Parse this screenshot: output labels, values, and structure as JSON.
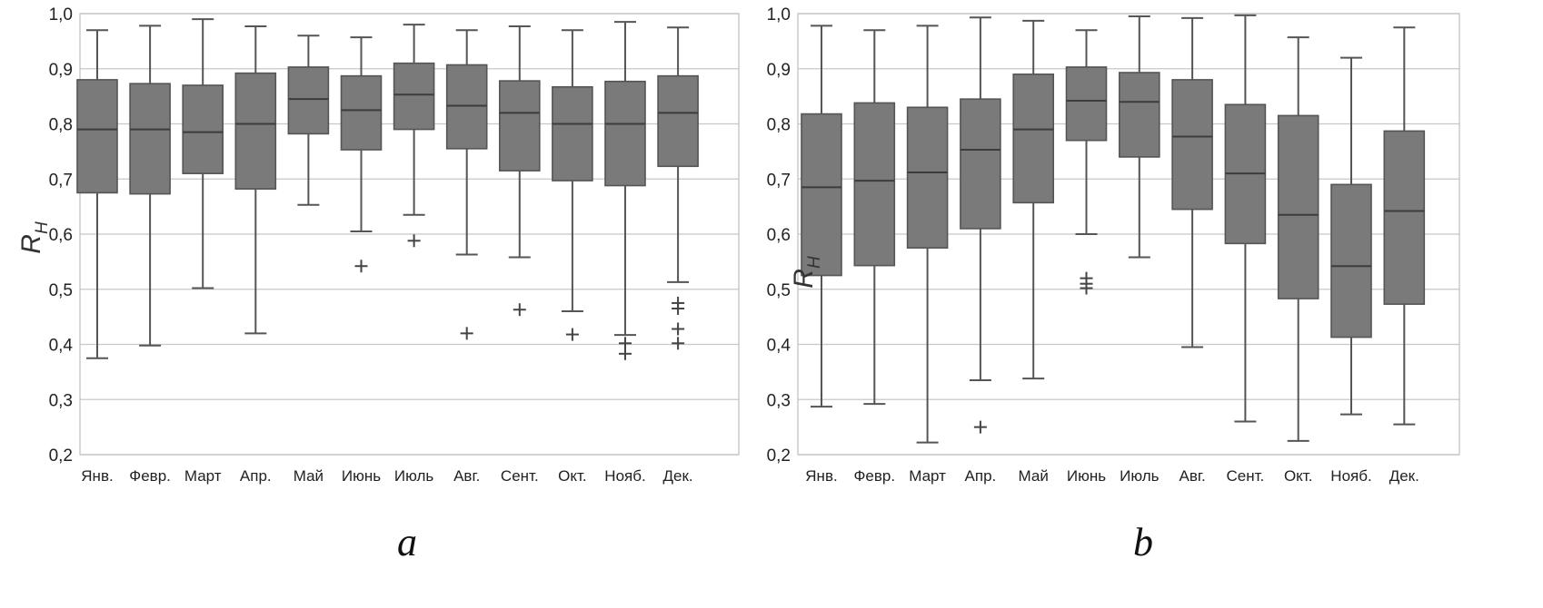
{
  "chart_data": [
    {
      "type": "box",
      "panel_label": "a",
      "ylabel": "R",
      "ylabel_subscript": "H",
      "ylim": [
        0.2,
        1.0
      ],
      "yticks": [
        "0,2",
        "0,3",
        "0,4",
        "0,5",
        "0,6",
        "0,7",
        "0,8",
        "0,9",
        "1,0"
      ],
      "grid": true,
      "categories": [
        "Янв.",
        "Февр.",
        "Март",
        "Апр.",
        "Май",
        "Июнь",
        "Июль",
        "Авг.",
        "Сент.",
        "Окт.",
        "Нояб.",
        "Дек."
      ],
      "boxes": [
        {
          "whisker_low": 0.375,
          "q1": 0.675,
          "median": 0.79,
          "q3": 0.88,
          "whisker_high": 0.97,
          "outliers": []
        },
        {
          "whisker_low": 0.398,
          "q1": 0.673,
          "median": 0.79,
          "q3": 0.873,
          "whisker_high": 0.978,
          "outliers": []
        },
        {
          "whisker_low": 0.502,
          "q1": 0.71,
          "median": 0.785,
          "q3": 0.87,
          "whisker_high": 0.99,
          "outliers": []
        },
        {
          "whisker_low": 0.42,
          "q1": 0.682,
          "median": 0.8,
          "q3": 0.892,
          "whisker_high": 0.977,
          "outliers": []
        },
        {
          "whisker_low": 0.653,
          "q1": 0.782,
          "median": 0.845,
          "q3": 0.903,
          "whisker_high": 0.96,
          "outliers": []
        },
        {
          "whisker_low": 0.605,
          "q1": 0.753,
          "median": 0.825,
          "q3": 0.887,
          "whisker_high": 0.957,
          "outliers": [
            0.542
          ]
        },
        {
          "whisker_low": 0.635,
          "q1": 0.79,
          "median": 0.853,
          "q3": 0.91,
          "whisker_high": 0.98,
          "outliers": [
            0.588
          ]
        },
        {
          "whisker_low": 0.563,
          "q1": 0.755,
          "median": 0.833,
          "q3": 0.907,
          "whisker_high": 0.97,
          "outliers": [
            0.42
          ]
        },
        {
          "whisker_low": 0.558,
          "q1": 0.715,
          "median": 0.82,
          "q3": 0.878,
          "whisker_high": 0.977,
          "outliers": [
            0.463
          ]
        },
        {
          "whisker_low": 0.46,
          "q1": 0.697,
          "median": 0.8,
          "q3": 0.867,
          "whisker_high": 0.97,
          "outliers": [
            0.418
          ]
        },
        {
          "whisker_low": 0.417,
          "q1": 0.688,
          "median": 0.8,
          "q3": 0.877,
          "whisker_high": 0.985,
          "outliers": [
            0.402,
            0.383
          ]
        },
        {
          "whisker_low": 0.513,
          "q1": 0.723,
          "median": 0.82,
          "q3": 0.887,
          "whisker_high": 0.975,
          "outliers": [
            0.475,
            0.465,
            0.428,
            0.402
          ]
        }
      ]
    },
    {
      "type": "box",
      "panel_label": "b",
      "ylabel": "R",
      "ylabel_subscript": "H",
      "ylim": [
        0.2,
        1.0
      ],
      "yticks": [
        "0,2",
        "0,3",
        "0,4",
        "0,5",
        "0,6",
        "0,7",
        "0,8",
        "0,9",
        "1,0"
      ],
      "grid": true,
      "categories": [
        "Янв.",
        "Февр.",
        "Март",
        "Апр.",
        "Май",
        "Июнь",
        "Июль",
        "Авг.",
        "Сент.",
        "Окт.",
        "Нояб.",
        "Дек."
      ],
      "boxes": [
        {
          "whisker_low": 0.287,
          "q1": 0.525,
          "median": 0.685,
          "q3": 0.818,
          "whisker_high": 0.978,
          "outliers": []
        },
        {
          "whisker_low": 0.292,
          "q1": 0.543,
          "median": 0.697,
          "q3": 0.838,
          "whisker_high": 0.97,
          "outliers": []
        },
        {
          "whisker_low": 0.222,
          "q1": 0.575,
          "median": 0.712,
          "q3": 0.83,
          "whisker_high": 0.978,
          "outliers": []
        },
        {
          "whisker_low": 0.335,
          "q1": 0.61,
          "median": 0.753,
          "q3": 0.845,
          "whisker_high": 0.993,
          "outliers": [
            0.25
          ]
        },
        {
          "whisker_low": 0.338,
          "q1": 0.657,
          "median": 0.79,
          "q3": 0.89,
          "whisker_high": 0.987,
          "outliers": []
        },
        {
          "whisker_low": 0.6,
          "q1": 0.77,
          "median": 0.842,
          "q3": 0.903,
          "whisker_high": 0.97,
          "outliers": [
            0.52,
            0.51,
            0.502
          ]
        },
        {
          "whisker_low": 0.558,
          "q1": 0.74,
          "median": 0.84,
          "q3": 0.893,
          "whisker_high": 0.995,
          "outliers": []
        },
        {
          "whisker_low": 0.395,
          "q1": 0.645,
          "median": 0.777,
          "q3": 0.88,
          "whisker_high": 0.992,
          "outliers": []
        },
        {
          "whisker_low": 0.26,
          "q1": 0.583,
          "median": 0.71,
          "q3": 0.835,
          "whisker_high": 0.997,
          "outliers": []
        },
        {
          "whisker_low": 0.225,
          "q1": 0.483,
          "median": 0.635,
          "q3": 0.815,
          "whisker_high": 0.957,
          "outliers": []
        },
        {
          "whisker_low": 0.273,
          "q1": 0.413,
          "median": 0.542,
          "q3": 0.69,
          "whisker_high": 0.92,
          "outliers": []
        },
        {
          "whisker_low": 0.255,
          "q1": 0.473,
          "median": 0.642,
          "q3": 0.787,
          "whisker_high": 0.975,
          "outliers": []
        }
      ]
    }
  ]
}
